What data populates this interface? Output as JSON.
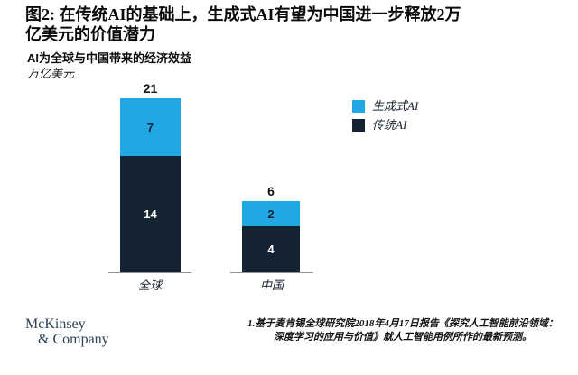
{
  "title": {
    "line1": "图2: 在传统AI的基础上，生成式AI有望为中国进一步释放2万",
    "line2": "亿美元的价值潜力"
  },
  "subtitle": {
    "heading": "AI为全球与中国带来的经济效益",
    "unit": "万亿美元"
  },
  "legend": [
    {
      "label": "生成式AI",
      "color": "#21a8e4"
    },
    {
      "label": "传统AI",
      "color": "#142332"
    }
  ],
  "chart_data": {
    "type": "bar",
    "stacked": true,
    "categories": [
      "全球",
      "中国"
    ],
    "series": [
      {
        "name": "生成式AI",
        "values": [
          7,
          2
        ],
        "color": "#21a8e4"
      },
      {
        "name": "传统AI",
        "values": [
          14,
          4
        ],
        "color": "#142332"
      }
    ],
    "totals": [
      21,
      6
    ],
    "title": "AI为全球与中国带来的经济效益",
    "unit_label": "万亿美元",
    "legend_position": "right",
    "grid": false,
    "value_labels": "inside-and-total-above"
  },
  "bars": [
    {
      "category": "全球",
      "total": "21",
      "gen": "7",
      "trad": "14"
    },
    {
      "category": "中国",
      "total": "6",
      "gen": "2",
      "trad": "4"
    }
  ],
  "footer": {
    "logo_line1": "McKinsey",
    "logo_line2": "& Company",
    "footnote_line1": "1.基于麦肯锡全球研究院2018年4月17日报告《探究人工智能前沿领域：",
    "footnote_line2": "深度学习的应用与价值》就人工智能用例所作的最新预测。"
  },
  "colors": {
    "generative_blue": "#21a8e4",
    "traditional_navy": "#142332",
    "logo_navy": "#2e4154",
    "axis_gray": "#8f8f8f"
  }
}
